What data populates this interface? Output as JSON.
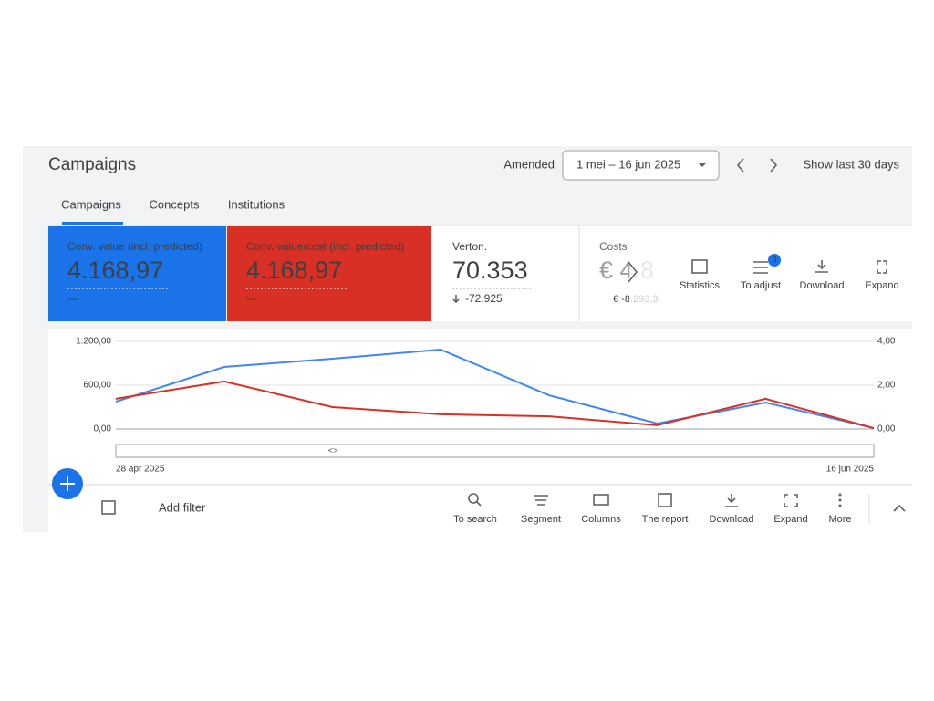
{
  "header": {
    "title": "Campaigns",
    "amended_label": "Amended",
    "date_range": "1 mei – 16 jun 2025",
    "show_last": "Show last 30 days"
  },
  "tabs": [
    "Campaigns",
    "Concepts",
    "Institutions"
  ],
  "scorecards": [
    {
      "label": "Conv. value (incl. predicted)",
      "value": "4.168,97",
      "change": "—"
    },
    {
      "label": "Conv. value/cost (incl. predicted)",
      "value": "4.168,97",
      "change": "—"
    },
    {
      "label": "Verton.",
      "value": "70.353",
      "change": "-72.925"
    },
    {
      "label": "Costs",
      "value": "€ 4.8",
      "change": "€ -8.293,3"
    }
  ],
  "chart_toolbar": {
    "buttons": [
      "Statistics",
      "To adjust",
      "Download",
      "Expand"
    ],
    "badge": "3"
  },
  "chart_data": {
    "type": "line",
    "categories": [
      "28 apr 2025",
      null,
      null,
      null,
      null,
      null,
      null,
      "16 jun 2025"
    ],
    "series": [
      {
        "color": "#4285f4",
        "values": [
          375,
          850,
          962,
          1088,
          462,
          75,
          362,
          12
        ]
      },
      {
        "color": "#d93025",
        "axis": "y2",
        "values": [
          1.38,
          2.17,
          1.0,
          0.67,
          0.58,
          0.17,
          1.38,
          0.04
        ]
      }
    ],
    "ylim": [
      0,
      1200
    ],
    "yticks": [
      {
        "value": 0,
        "label": "0,00"
      },
      {
        "value": 600,
        "label": "600,00"
      },
      {
        "value": 1200,
        "label": "1.200,00"
      }
    ],
    "y2lim": [
      0,
      4
    ],
    "y2ticks": [
      {
        "value": 0,
        "label": "0,00"
      },
      {
        "value": 2,
        "label": "2,00"
      },
      {
        "value": 4,
        "label": "4,00"
      }
    ],
    "grid": true
  },
  "bottom_toolbar": {
    "add_filter": "Add filter",
    "buttons": [
      "To search",
      "Segment",
      "Columns",
      "The report",
      "Download",
      "Expand",
      "More"
    ]
  }
}
